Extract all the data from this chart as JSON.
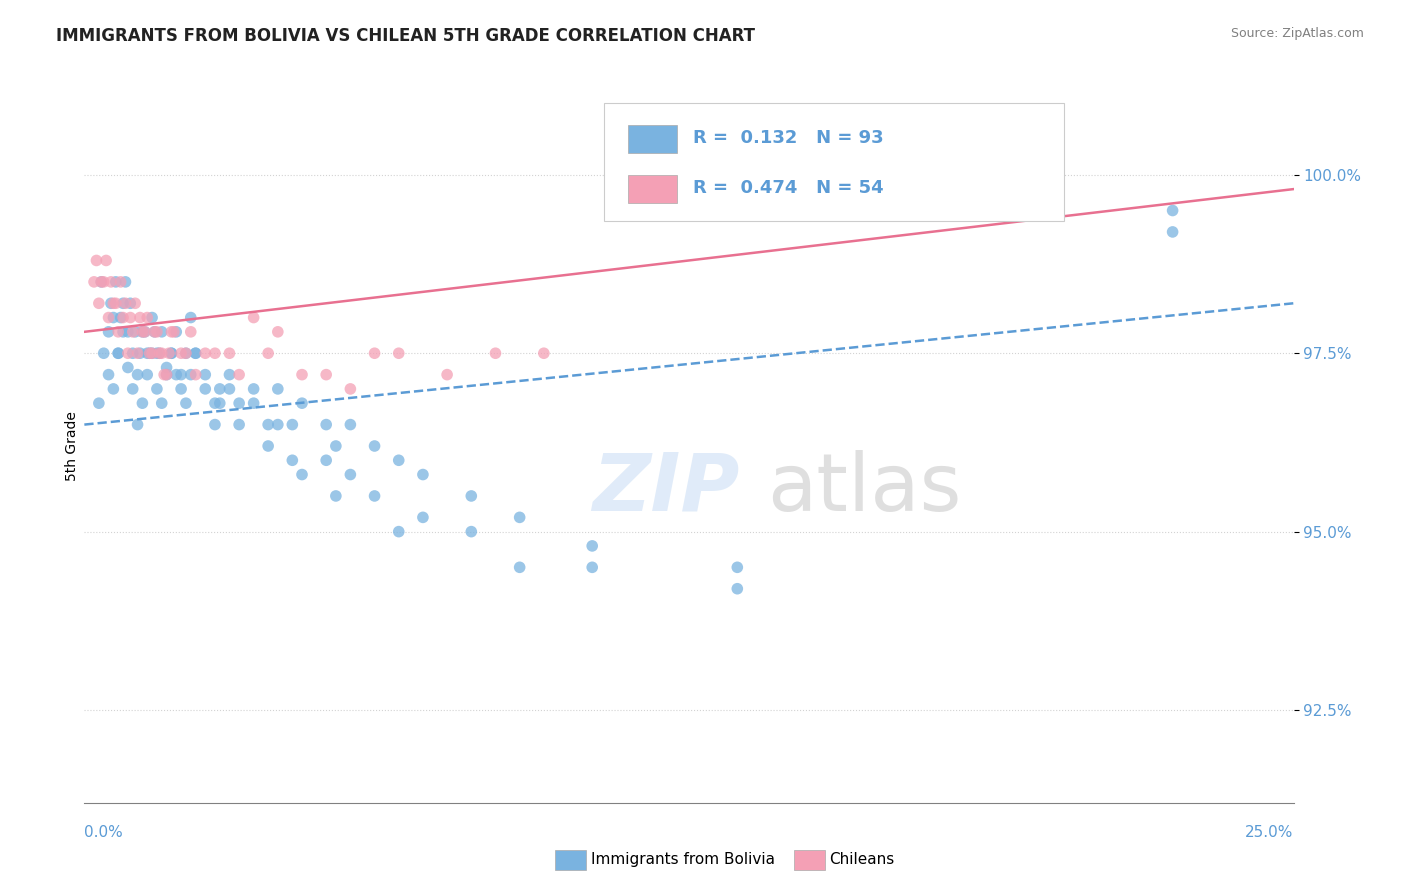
{
  "title": "IMMIGRANTS FROM BOLIVIA VS CHILEAN 5TH GRADE CORRELATION CHART",
  "source": "Source: ZipAtlas.com",
  "ylabel": "5th Grade",
  "ytick_labels": [
    "92.5%",
    "95.0%",
    "97.5%",
    "100.0%"
  ],
  "ytick_values": [
    92.5,
    95.0,
    97.5,
    100.0
  ],
  "xlim": [
    0.0,
    25.0
  ],
  "ylim": [
    91.2,
    101.2
  ],
  "blue_color": "#7ab3e0",
  "pink_color": "#f4a0b5",
  "blue_line_color": "#5b9bd5",
  "pink_line_color": "#e87090",
  "blue_x": [
    0.3,
    0.5,
    0.6,
    0.7,
    0.8,
    0.9,
    1.0,
    1.1,
    1.2,
    1.3,
    1.4,
    1.5,
    1.6,
    1.7,
    1.8,
    1.9,
    2.0,
    2.1,
    2.2,
    2.3,
    2.5,
    2.7,
    2.8,
    3.0,
    3.2,
    3.5,
    3.8,
    4.0,
    4.3,
    4.5,
    5.0,
    5.2,
    5.5,
    6.0,
    6.5,
    7.0,
    8.0,
    9.0,
    10.5,
    13.5,
    22.5,
    0.4,
    0.5,
    0.6,
    0.7,
    0.8,
    0.9,
    1.0,
    1.1,
    1.2,
    1.3,
    1.4,
    1.5,
    1.6,
    1.7,
    1.8,
    1.9,
    2.0,
    2.1,
    2.2,
    2.3,
    2.5,
    2.7,
    2.8,
    3.0,
    3.2,
    3.5,
    3.8,
    4.0,
    4.3,
    4.5,
    5.0,
    5.2,
    5.5,
    6.0,
    6.5,
    7.0,
    8.0,
    9.0,
    10.5,
    13.5,
    22.5,
    0.35,
    0.55,
    0.65,
    0.75,
    0.85,
    0.95,
    1.05,
    1.15,
    1.25,
    1.35,
    1.45,
    1.55
  ],
  "blue_y": [
    96.8,
    97.2,
    97.0,
    97.5,
    97.8,
    97.3,
    97.0,
    96.5,
    96.8,
    97.2,
    97.5,
    97.0,
    96.8,
    97.3,
    97.5,
    97.2,
    97.0,
    96.8,
    97.2,
    97.5,
    97.0,
    96.5,
    96.8,
    97.0,
    96.5,
    96.8,
    96.2,
    96.5,
    96.0,
    95.8,
    96.0,
    95.5,
    95.8,
    95.5,
    95.0,
    95.2,
    95.0,
    94.5,
    94.8,
    94.5,
    99.5,
    97.5,
    97.8,
    98.0,
    97.5,
    98.2,
    97.8,
    97.5,
    97.2,
    97.8,
    97.5,
    98.0,
    97.5,
    97.8,
    97.2,
    97.5,
    97.8,
    97.2,
    97.5,
    98.0,
    97.5,
    97.2,
    96.8,
    97.0,
    97.2,
    96.8,
    97.0,
    96.5,
    97.0,
    96.5,
    96.8,
    96.5,
    96.2,
    96.5,
    96.2,
    96.0,
    95.8,
    95.5,
    95.2,
    94.5,
    94.2,
    99.2,
    98.5,
    98.2,
    98.5,
    98.0,
    98.5,
    98.2,
    97.8,
    97.5,
    97.8,
    97.5,
    97.8,
    97.5
  ],
  "pink_x": [
    0.2,
    0.3,
    0.4,
    0.5,
    0.6,
    0.7,
    0.8,
    0.9,
    1.0,
    1.1,
    1.2,
    1.3,
    1.4,
    1.5,
    1.6,
    1.7,
    1.8,
    2.0,
    2.2,
    2.5,
    3.0,
    3.5,
    4.0,
    5.0,
    6.0,
    7.5,
    9.5,
    11.0,
    0.25,
    0.35,
    0.45,
    0.55,
    0.65,
    0.75,
    0.85,
    0.95,
    1.05,
    1.15,
    1.25,
    1.35,
    1.45,
    1.55,
    1.65,
    1.75,
    1.85,
    2.1,
    2.3,
    2.7,
    3.2,
    3.8,
    4.5,
    5.5,
    6.5,
    8.5
  ],
  "pink_y": [
    98.5,
    98.2,
    98.5,
    98.0,
    98.2,
    97.8,
    98.0,
    97.5,
    97.8,
    97.5,
    97.8,
    98.0,
    97.5,
    97.8,
    97.5,
    97.2,
    97.8,
    97.5,
    97.8,
    97.5,
    97.5,
    98.0,
    97.8,
    97.2,
    97.5,
    97.2,
    97.5,
    99.5,
    98.8,
    98.5,
    98.8,
    98.5,
    98.2,
    98.5,
    98.2,
    98.0,
    98.2,
    98.0,
    97.8,
    97.5,
    97.8,
    97.5,
    97.2,
    97.5,
    97.8,
    97.5,
    97.2,
    97.5,
    97.2,
    97.5,
    97.2,
    97.0,
    97.5,
    97.5
  ],
  "blue_trend_x": [
    0.0,
    25.0
  ],
  "blue_trend_y": [
    96.5,
    98.2
  ],
  "pink_trend_x": [
    0.0,
    25.0
  ],
  "pink_trend_y": [
    97.8,
    99.8
  ]
}
